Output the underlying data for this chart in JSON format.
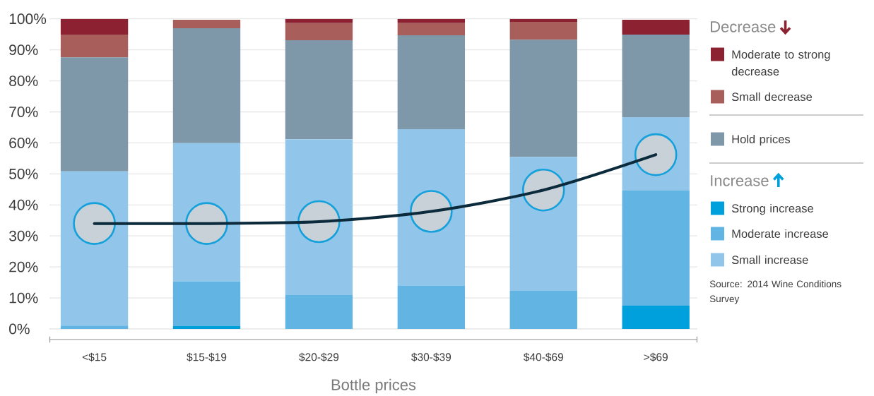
{
  "chart_data": {
    "type": "bar",
    "stacked": true,
    "xlabel": "Bottle prices",
    "categories": [
      "<$15",
      "$15-$19",
      "$20-$29",
      "$30-$39",
      "$40-$69",
      ">$69"
    ],
    "series": [
      {
        "name": "Strong increase",
        "color": "#00a0dc",
        "values": [
          0,
          0.9,
          0,
          0,
          0,
          7.5
        ]
      },
      {
        "name": "Moderate increase",
        "color": "#62b4e3",
        "values": [
          1.1,
          14.4,
          10.9,
          13.9,
          12.3,
          37.1
        ]
      },
      {
        "name": "Small increase",
        "color": "#91c6ea",
        "values": [
          49.7,
          44.6,
          50.3,
          50.5,
          43.2,
          23.7
        ]
      },
      {
        "name": "Hold prices",
        "color": "#7e97a9",
        "values": [
          36.8,
          37.1,
          31.9,
          30.3,
          37.8,
          26.6
        ]
      },
      {
        "name": "Small decrease",
        "color": "#a85f5c",
        "values": [
          7.3,
          2.7,
          5.5,
          3.9,
          5.7,
          0
        ]
      },
      {
        "name": "Moderate to strong decrease",
        "color": "#8b2131",
        "values": [
          5.1,
          0,
          1.4,
          1.4,
          1.0,
          4.8
        ]
      },
      {
        "type": "line",
        "color": "#0b2a3b",
        "line_style": "solid",
        "values": [
          34.0,
          34.0,
          34.6,
          37.9,
          44.8,
          56.2
        ]
      }
    ],
    "ylim": [
      0,
      100
    ],
    "yticks": [
      {
        "value": 0,
        "label": "0%"
      },
      {
        "value": 10,
        "label": "10%"
      },
      {
        "value": 20,
        "label": "20%"
      },
      {
        "value": 30,
        "label": "30%"
      },
      {
        "value": 40,
        "label": "40%"
      },
      {
        "value": 50,
        "label": "50%"
      },
      {
        "value": 60,
        "label": "60%"
      },
      {
        "value": 70,
        "label": "70%"
      },
      {
        "value": 80,
        "label": "80%"
      },
      {
        "value": 90,
        "label": "90%"
      },
      {
        "value": 100,
        "label": "100%"
      }
    ],
    "grid": "y",
    "legend": "right",
    "annotations": [
      "Decrease",
      "Increase",
      "Source: 2014 Wine Conditions Survey"
    ]
  }
}
